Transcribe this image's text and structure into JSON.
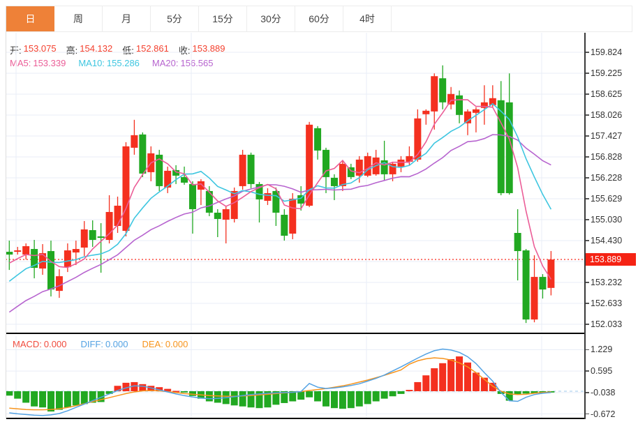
{
  "tabs": {
    "items": [
      {
        "id": "day",
        "label": "日",
        "selected": true
      },
      {
        "id": "week",
        "label": "周",
        "selected": false
      },
      {
        "id": "month",
        "label": "月",
        "selected": false
      },
      {
        "id": "5min",
        "label": "5分",
        "selected": false
      },
      {
        "id": "15min",
        "label": "15分",
        "selected": false
      },
      {
        "id": "30min",
        "label": "30分",
        "selected": false
      },
      {
        "id": "60min",
        "label": "60分",
        "selected": false
      },
      {
        "id": "4hour",
        "label": "4时",
        "selected": false
      }
    ]
  },
  "ohlc_bar": {
    "open_label": "开:",
    "open_value": "153.075",
    "high_label": "高:",
    "high_value": "154.132",
    "low_label": "低:",
    "low_value": "152.861",
    "close_label": "收:",
    "close_value": "153.889"
  },
  "ma_bar": {
    "ma5_label": "MA5:",
    "ma5_value": "153.339",
    "ma10_label": "MA10:",
    "ma10_value": "155.286",
    "ma20_label": "MA20:",
    "ma20_value": "156.565"
  },
  "macd_bar": {
    "macd_label": "MACD:",
    "macd_value": "0.000",
    "diff_label": "DIFF:",
    "diff_value": "0.000",
    "dea_label": "DEA:",
    "dea_value": "0.000"
  },
  "price_axis": {
    "ticks": [
      "159.824",
      "159.225",
      "158.625",
      "158.026",
      "157.427",
      "156.828",
      "156.228",
      "155.629",
      "155.030",
      "154.430",
      "153.232",
      "152.633",
      "152.033"
    ],
    "current_price_badge": "153.889"
  },
  "macd_axis": {
    "ticks": [
      "1.229",
      "0.595",
      "-0.038",
      "-0.672"
    ]
  },
  "colors": {
    "up": "#f4301f",
    "down": "#21a821",
    "ma5": "#eb5d97",
    "ma10": "#3ec6e0",
    "ma20": "#b764cf",
    "diff_line": "#53a2e3",
    "dea_line": "#f7941d",
    "badge_bg": "#f52314",
    "dotted_price_line": "#fb5b51",
    "grid": "#e9eef7",
    "zero_dash": "#bedcf2",
    "tab_active_bg": "#ee8138",
    "ohlc_value": "#f4402e",
    "macd_label": "#f04a3c"
  },
  "chart_data": {
    "type": "candlestick",
    "panels": [
      {
        "name": "price",
        "ylim": [
          151.9,
          160.3
        ],
        "grid_top_price": 159.824,
        "grid_step": 0.5993,
        "grid_count": 14,
        "current_price": 153.889,
        "overlays": [
          {
            "name": "MA5",
            "period": 5,
            "value": 153.339
          },
          {
            "name": "MA10",
            "period": 10,
            "value": 155.286
          },
          {
            "name": "MA20",
            "period": 20,
            "value": 156.565
          }
        ],
        "prehistory_closes": [
          150.6,
          150.8,
          151.0,
          151.2,
          151.4,
          151.5,
          151.6,
          151.7,
          151.8,
          151.9,
          152.1,
          152.3,
          152.5,
          152.7,
          152.9,
          153.3,
          153.5,
          153.7,
          153.8,
          153.9
        ],
        "candles": [
          [
            154.11,
            154.43,
            153.59,
            154.03
          ],
          [
            154.11,
            154.25,
            154.03,
            154.15
          ],
          [
            154.03,
            154.35,
            153.89,
            154.27
          ],
          [
            154.19,
            154.45,
            153.35,
            153.65
          ],
          [
            153.63,
            154.33,
            153.45,
            154.07
          ],
          [
            154.13,
            154.43,
            152.83,
            153.03
          ],
          [
            152.99,
            153.61,
            152.79,
            153.41
          ],
          [
            153.67,
            154.35,
            153.53,
            154.15
          ],
          [
            154.09,
            154.43,
            153.73,
            154.19
          ],
          [
            154.23,
            154.99,
            153.99,
            154.75
          ],
          [
            154.73,
            155.01,
            154.25,
            154.45
          ],
          [
            154.55,
            154.93,
            153.51,
            154.51
          ],
          [
            154.45,
            155.73,
            154.35,
            155.25
          ],
          [
            154.85,
            155.69,
            154.65,
            155.43
          ],
          [
            154.71,
            157.25,
            154.55,
            157.13
          ],
          [
            157.09,
            157.89,
            156.89,
            157.45
          ],
          [
            157.47,
            157.53,
            156.25,
            156.35
          ],
          [
            156.39,
            157.13,
            156.13,
            156.93
          ],
          [
            156.89,
            157.03,
            155.85,
            155.99
          ],
          [
            155.95,
            156.55,
            155.79,
            156.43
          ],
          [
            156.45,
            156.59,
            156.05,
            156.29
          ],
          [
            156.25,
            156.55,
            156.03,
            156.09
          ],
          [
            156.05,
            156.13,
            154.63,
            155.33
          ],
          [
            155.89,
            156.19,
            155.45,
            156.13
          ],
          [
            155.85,
            155.99,
            155.13,
            155.23
          ],
          [
            155.23,
            155.33,
            154.53,
            155.05
          ],
          [
            155.03,
            155.43,
            154.35,
            155.33
          ],
          [
            155.05,
            155.95,
            154.95,
            155.85
          ],
          [
            155.99,
            157.03,
            155.89,
            156.89
          ],
          [
            156.89,
            156.95,
            155.93,
            156.05
          ],
          [
            156.05,
            156.11,
            154.95,
            155.61
          ],
          [
            155.57,
            155.93,
            155.45,
            155.79
          ],
          [
            155.85,
            155.95,
            154.85,
            155.23
          ],
          [
            155.17,
            155.33,
            154.43,
            154.57
          ],
          [
            154.63,
            155.79,
            154.47,
            155.63
          ],
          [
            155.73,
            155.99,
            155.29,
            155.49
          ],
          [
            155.43,
            157.83,
            155.39,
            157.75
          ],
          [
            157.65,
            157.71,
            156.75,
            157.01
          ],
          [
            157.03,
            157.09,
            155.79,
            156.25
          ],
          [
            156.23,
            156.33,
            155.59,
            155.99
          ],
          [
            155.99,
            156.73,
            155.85,
            156.63
          ],
          [
            156.53,
            156.63,
            156.19,
            156.25
          ],
          [
            156.29,
            156.85,
            156.09,
            156.75
          ],
          [
            156.29,
            156.95,
            156.25,
            156.85
          ],
          [
            156.33,
            157.03,
            156.29,
            156.81
          ],
          [
            156.73,
            157.29,
            156.15,
            156.33
          ],
          [
            156.33,
            156.69,
            156.13,
            156.63
          ],
          [
            156.55,
            156.85,
            156.39,
            156.75
          ],
          [
            156.69,
            157.13,
            156.59,
            156.85
          ],
          [
            156.75,
            158.19,
            156.69,
            157.93
          ],
          [
            158.05,
            158.19,
            157.75,
            158.15
          ],
          [
            158.13,
            159.22,
            157.61,
            159.14
          ],
          [
            159.08,
            159.45,
            158.19,
            158.39
          ],
          [
            158.33,
            158.83,
            158.19,
            158.63
          ],
          [
            158.59,
            158.73,
            157.79,
            158.03
          ],
          [
            157.79,
            158.19,
            157.45,
            158.13
          ],
          [
            158.09,
            158.25,
            157.53,
            158.19
          ],
          [
            158.23,
            158.88,
            157.75,
            158.39
          ],
          [
            158.31,
            158.88,
            158.25,
            158.51
          ],
          [
            158.45,
            159.0,
            155.73,
            155.79
          ],
          [
            158.39,
            159.22,
            155.75,
            155.79
          ],
          [
            154.65,
            155.33,
            153.29,
            154.13
          ],
          [
            154.15,
            154.19,
            152.07,
            152.17
          ],
          [
            152.17,
            154.01,
            152.09,
            153.39
          ],
          [
            153.39,
            153.47,
            152.77,
            153.03
          ],
          [
            153.075,
            154.132,
            152.861,
            153.889
          ]
        ]
      },
      {
        "name": "macd",
        "gridline_values": [
          1.229,
          0.595,
          -0.038,
          -0.672
        ],
        "zero_value": 0,
        "bars": [
          -0.13,
          -0.22,
          -0.34,
          -0.45,
          -0.48,
          -0.6,
          -0.55,
          -0.48,
          -0.42,
          -0.38,
          -0.34,
          -0.32,
          -0.08,
          0.16,
          0.25,
          0.27,
          0.21,
          0.16,
          0.12,
          0.07,
          0.01,
          -0.01,
          -0.14,
          -0.22,
          -0.3,
          -0.34,
          -0.38,
          -0.42,
          -0.45,
          -0.48,
          -0.5,
          -0.48,
          -0.4,
          -0.35,
          -0.3,
          -0.25,
          -0.18,
          -0.3,
          -0.45,
          -0.5,
          -0.52,
          -0.5,
          -0.45,
          -0.38,
          -0.3,
          -0.22,
          -0.15,
          -0.08,
          0.04,
          0.27,
          0.47,
          0.68,
          0.83,
          0.95,
          1.03,
          0.85,
          0.55,
          0.4,
          0.25,
          -0.08,
          -0.28,
          -0.1,
          -0.07,
          -0.06,
          -0.04,
          -0.03
        ],
        "diff": [
          -0.64,
          -0.67,
          -0.69,
          -0.71,
          -0.72,
          -0.7,
          -0.66,
          -0.58,
          -0.48,
          -0.38,
          -0.28,
          -0.18,
          -0.08,
          0.02,
          0.1,
          0.16,
          0.15,
          0.1,
          0.04,
          -0.02,
          -0.08,
          -0.13,
          -0.17,
          -0.2,
          -0.22,
          -0.21,
          -0.19,
          -0.16,
          -0.13,
          -0.1,
          -0.08,
          -0.06,
          -0.05,
          -0.04,
          -0.03,
          -0.01,
          0.23,
          0.12,
          0.08,
          0.1,
          0.13,
          0.17,
          0.22,
          0.3,
          0.38,
          0.48,
          0.6,
          0.72,
          0.85,
          0.98,
          1.1,
          1.2,
          1.25,
          1.22,
          1.15,
          1.02,
          0.82,
          0.55,
          0.3,
          -0.04,
          -0.28,
          -0.3,
          -0.18,
          -0.1,
          -0.06,
          -0.04
        ],
        "dea": [
          -0.5,
          -0.52,
          -0.54,
          -0.55,
          -0.55,
          -0.54,
          -0.52,
          -0.48,
          -0.43,
          -0.37,
          -0.31,
          -0.25,
          -0.19,
          -0.13,
          -0.07,
          -0.02,
          0.01,
          0.02,
          0.01,
          -0.01,
          -0.04,
          -0.07,
          -0.09,
          -0.11,
          -0.13,
          -0.14,
          -0.15,
          -0.15,
          -0.14,
          -0.13,
          -0.11,
          -0.09,
          -0.07,
          -0.05,
          -0.03,
          -0.01,
          0.02,
          0.05,
          0.08,
          0.12,
          0.16,
          0.21,
          0.27,
          0.33,
          0.4,
          0.47,
          0.55,
          0.63,
          0.8,
          0.9,
          0.96,
          0.99,
          0.97,
          0.92,
          0.84,
          0.72,
          0.55,
          0.35,
          0.15,
          0.0,
          -0.08,
          -0.1,
          -0.09,
          -0.06,
          -0.04,
          -0.02
        ]
      }
    ]
  }
}
